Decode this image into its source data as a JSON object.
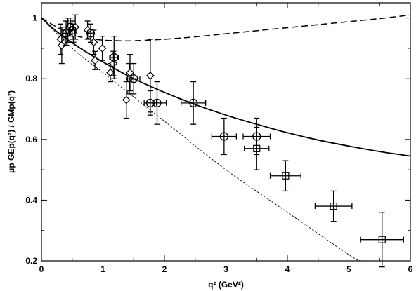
{
  "chart_data": {
    "type": "scatter",
    "xlabel": "q² (GeV²)",
    "ylabel": "μp GEp(q²) / GMp(q²)",
    "xlim": [
      0,
      6
    ],
    "ylim": [
      0.2,
      1.05
    ],
    "xticks": [
      "0",
      "1",
      "2",
      "3",
      "4",
      "5",
      "6"
    ],
    "yticks": [
      "0.2",
      "0.4",
      "0.6",
      "0.8",
      "1"
    ],
    "grid": false,
    "legend": "none",
    "series": [
      {
        "marker": "diamond",
        "points": [
          {
            "x": 0.31,
            "y": 0.93,
            "yerr": 0.05
          },
          {
            "x": 0.33,
            "y": 0.91,
            "yerr": 0.06
          },
          {
            "x": 0.43,
            "y": 0.96,
            "yerr": 0.04
          },
          {
            "x": 0.52,
            "y": 0.95,
            "yerr": 0.03
          },
          {
            "x": 0.55,
            "y": 0.97,
            "yerr": 0.04
          },
          {
            "x": 0.75,
            "y": 0.96,
            "yerr": 0.03
          },
          {
            "x": 0.85,
            "y": 0.92,
            "yerr": 0.04
          },
          {
            "x": 0.87,
            "y": 0.86,
            "yerr": 0.03
          },
          {
            "x": 0.99,
            "y": 0.9,
            "yerr": 0.04
          },
          {
            "x": 1.12,
            "y": 0.82,
            "yerr": 0.03
          },
          {
            "x": 1.17,
            "y": 0.85,
            "yerr": 0.04
          },
          {
            "x": 1.38,
            "y": 0.73,
            "yerr": 0.06
          },
          {
            "x": 1.43,
            "y": 0.8,
            "yerr": 0.05
          },
          {
            "x": 1.44,
            "y": 0.82,
            "yerr": 0.06
          },
          {
            "x": 1.77,
            "y": 0.81,
            "yerr": 0.12
          }
        ]
      },
      {
        "marker": "circle",
        "points": [
          {
            "x": 0.4,
            "y": 0.95,
            "yerr": 0.04,
            "xerr": 0.05
          },
          {
            "x": 0.47,
            "y": 0.97,
            "yerr": 0.03,
            "xerr": 0.05
          },
          {
            "x": 0.5,
            "y": 0.96,
            "yerr": 0.03,
            "xerr": 0.05
          },
          {
            "x": 0.8,
            "y": 0.95,
            "yerr": 0.03,
            "xerr": 0.05
          },
          {
            "x": 1.18,
            "y": 0.87,
            "yerr": 0.07,
            "xerr": 0.07
          },
          {
            "x": 1.5,
            "y": 0.8,
            "yerr": 0.05,
            "xerr": 0.1
          },
          {
            "x": 1.77,
            "y": 0.72,
            "yerr": 0.04,
            "xerr": 0.1
          },
          {
            "x": 1.88,
            "y": 0.72,
            "yerr": 0.07,
            "xerr": 0.15
          },
          {
            "x": 2.47,
            "y": 0.72,
            "yerr": 0.07,
            "xerr": 0.2
          },
          {
            "x": 2.97,
            "y": 0.61,
            "yerr": 0.06,
            "xerr": 0.2
          },
          {
            "x": 3.5,
            "y": 0.61,
            "yerr": 0.06,
            "xerr": 0.22
          }
        ]
      },
      {
        "marker": "square",
        "points": [
          {
            "x": 3.5,
            "y": 0.57,
            "yerr": 0.07,
            "xerr": 0.2
          },
          {
            "x": 3.97,
            "y": 0.48,
            "yerr": 0.05,
            "xerr": 0.25
          },
          {
            "x": 4.75,
            "y": 0.38,
            "yerr": 0.05,
            "xerr": 0.3
          },
          {
            "x": 5.54,
            "y": 0.27,
            "yerr": 0.09,
            "xerr": 0.35
          }
        ]
      }
    ],
    "curves": [
      {
        "style": "solid",
        "x": [
          0,
          0.25,
          0.5,
          0.75,
          1.0,
          1.5,
          2.0,
          2.5,
          3.0,
          3.5,
          4.0,
          4.5,
          5.0,
          5.5,
          6.0
        ],
        "y": [
          1.0,
          0.955,
          0.918,
          0.885,
          0.855,
          0.8,
          0.755,
          0.715,
          0.68,
          0.65,
          0.622,
          0.598,
          0.578,
          0.56,
          0.545
        ]
      },
      {
        "style": "long-dash",
        "x": [
          0,
          0.25,
          0.5,
          0.75,
          1.0,
          1.25,
          1.5,
          2.0,
          2.5,
          3.0,
          3.5,
          4.0,
          4.5,
          5.0,
          5.5,
          6.0
        ],
        "y": [
          1.0,
          0.97,
          0.945,
          0.933,
          0.927,
          0.925,
          0.925,
          0.93,
          0.938,
          0.948,
          0.958,
          0.968,
          0.978,
          0.988,
          0.998,
          1.01
        ]
      },
      {
        "style": "short-dash",
        "x": [
          0,
          0.5,
          1.0,
          2.0,
          3.0,
          4.0,
          5.0,
          5.2
        ],
        "y": [
          1.0,
          0.9,
          0.82,
          0.66,
          0.5,
          0.36,
          0.22,
          0.2
        ]
      }
    ]
  }
}
